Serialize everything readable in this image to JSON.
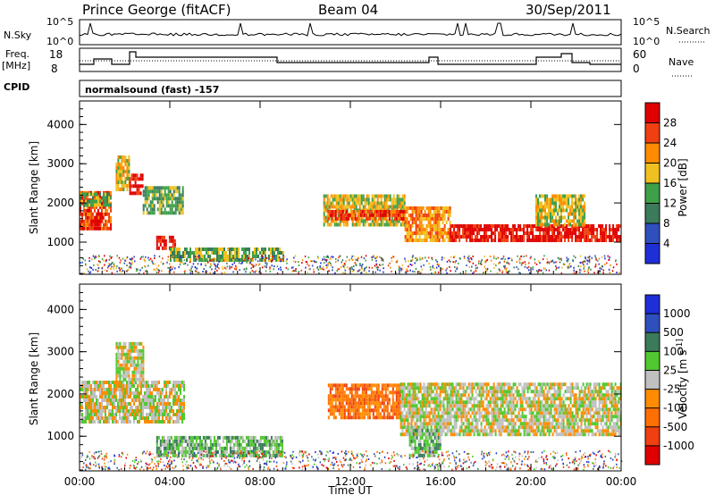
{
  "header": {
    "station": "Prince George (fitACF)",
    "beam": "Beam 04",
    "date": "30/Sep/2011"
  },
  "strip_labels": {
    "nsky": "N.Sky",
    "nsky_hi": "10^5",
    "nsky_lo": "10^0",
    "nsearch": "N.Search",
    "nsearch_hi": "10^5",
    "nsearch_lo": "10^0",
    "freq": "Freq.",
    "freq_unit": "[MHz]",
    "freq_hi": "18",
    "freq_lo": "8",
    "nave": "Nave",
    "nave_hi": "60",
    "nave_lo": "0",
    "cpid": "CPID",
    "cpid_value": "normalsound (fast) -157"
  },
  "chart_data": [
    {
      "type": "heatmap",
      "name": "Power",
      "xlabel": "",
      "ylabel": "Slant Range [km]",
      "x_ticks": [
        "00:00",
        "04:00",
        "08:00",
        "12:00",
        "16:00",
        "20:00",
        "00:00"
      ],
      "y_ticks": [
        1000,
        2000,
        3000,
        4000
      ],
      "ylim": [
        180,
        4600
      ],
      "colorbar": {
        "label": "Power [dB]",
        "ticks": [
          "4",
          "8",
          "12",
          "16",
          "20",
          "24",
          "28"
        ],
        "colors": [
          "#1e2fd8",
          "#2f4fbf",
          "#3b7a5a",
          "#3fa04a",
          "#f0c020",
          "#ff8c00",
          "#f04010",
          "#e00000"
        ]
      },
      "regions": [
        {
          "t0": 0.0,
          "t1": 1.4,
          "r0": 1300,
          "r1": 2300,
          "level": 6
        },
        {
          "t0": 0.0,
          "t1": 1.4,
          "r0": 1900,
          "r1": 2200,
          "level": 3
        },
        {
          "t0": 0.5,
          "t1": 1.0,
          "r0": 1400,
          "r1": 1750,
          "level": 7
        },
        {
          "t0": 1.6,
          "t1": 2.2,
          "r0": 2300,
          "r1": 3200,
          "level": 4
        },
        {
          "t0": 2.2,
          "t1": 2.8,
          "r0": 2200,
          "r1": 2700,
          "level": 7
        },
        {
          "t0": 2.8,
          "t1": 4.6,
          "r0": 1700,
          "r1": 2400,
          "level": 3
        },
        {
          "t0": 3.4,
          "t1": 4.2,
          "r0": 800,
          "r1": 1100,
          "level": 7
        },
        {
          "t0": 4.0,
          "t1": 9.0,
          "r0": 500,
          "r1": 800,
          "level": 3
        },
        {
          "t0": 10.8,
          "t1": 14.4,
          "r0": 1400,
          "r1": 2200,
          "level": 4
        },
        {
          "t0": 11.0,
          "t1": 14.4,
          "r0": 1550,
          "r1": 1800,
          "level": 6
        },
        {
          "t0": 14.4,
          "t1": 16.4,
          "r0": 1000,
          "r1": 1900,
          "level": 5
        },
        {
          "t0": 16.4,
          "t1": 24.0,
          "r0": 1000,
          "r1": 1400,
          "level": 7
        },
        {
          "t0": 20.2,
          "t1": 22.4,
          "r0": 1400,
          "r1": 2200,
          "level": 4
        }
      ]
    },
    {
      "type": "heatmap",
      "name": "Velocity",
      "xlabel": "Time UT",
      "ylabel": "Slant Range [km]",
      "x_ticks": [
        "00:00",
        "04:00",
        "08:00",
        "12:00",
        "16:00",
        "20:00",
        "00:00"
      ],
      "y_ticks": [
        1000,
        2000,
        3000,
        4000
      ],
      "ylim": [
        180,
        4600
      ],
      "colorbar": {
        "label": "Velocity [m s^-1]",
        "ticks": [
          "1000",
          "500",
          "100",
          "25",
          "-25",
          "-100",
          "-500",
          "-1000"
        ],
        "colors": [
          "#1e2fd8",
          "#2f4fbf",
          "#3b7a5a",
          "#52c830",
          "#c0c0c0",
          "#ff8c00",
          "#ff7000",
          "#f04010",
          "#e00000"
        ]
      },
      "regions": [
        {
          "t0": 0.0,
          "t1": 4.6,
          "r0": 1300,
          "r1": 2300,
          "level": 4
        },
        {
          "t0": 1.6,
          "t1": 2.8,
          "r0": 2300,
          "r1": 3200,
          "level": 4
        },
        {
          "t0": 3.4,
          "t1": 9.0,
          "r0": 500,
          "r1": 1000,
          "level": 3
        },
        {
          "t0": 11.0,
          "t1": 14.2,
          "r0": 1400,
          "r1": 2200,
          "level": 6
        },
        {
          "t0": 14.2,
          "t1": 24.0,
          "r0": 1000,
          "r1": 2200,
          "level": 4
        },
        {
          "t0": 14.6,
          "t1": 16.0,
          "r0": 500,
          "r1": 1100,
          "level": 3
        }
      ]
    }
  ]
}
